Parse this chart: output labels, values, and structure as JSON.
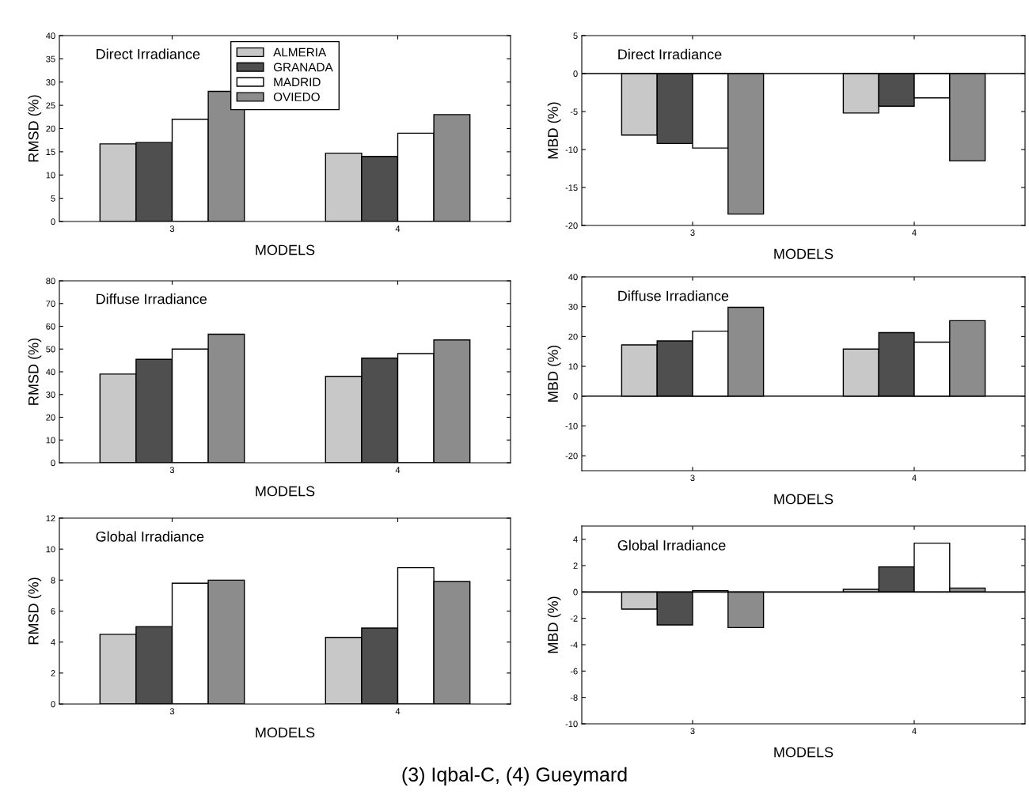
{
  "chart_data": [
    {
      "type": "bar",
      "title": "Direct Irradiance",
      "xlabel": "MODELS",
      "ylabel": "RMSD (%)",
      "categories": [
        "3",
        "4"
      ],
      "ylim": [
        0,
        40
      ],
      "yticks": [
        0,
        5,
        10,
        15,
        20,
        25,
        30,
        35,
        40
      ],
      "legend": "top",
      "grid": false,
      "series": [
        {
          "name": "ALMERIA",
          "color": "#c8c8c8",
          "values": [
            16.7,
            14.7
          ]
        },
        {
          "name": "GRANADA",
          "color": "#4f4f4f",
          "values": [
            17,
            14
          ]
        },
        {
          "name": "MADRID",
          "color": "#ffffff",
          "values": [
            22,
            19
          ]
        },
        {
          "name": "OVIEDO",
          "color": "#8c8c8c",
          "values": [
            28,
            23
          ]
        }
      ]
    },
    {
      "type": "bar",
      "title": "Direct Irradiance",
      "xlabel": "MODELS",
      "ylabel": "MBD (%)",
      "categories": [
        "3",
        "4"
      ],
      "ylim": [
        -20,
        5
      ],
      "yticks": [
        -20,
        -15,
        -10,
        -5,
        0,
        5
      ],
      "grid": false,
      "ref_lines": [
        {
          "axis": "y",
          "value": 0,
          "color": "#000000"
        }
      ],
      "series": [
        {
          "color": "#c8c8c8",
          "values": [
            -8.1,
            -5.2
          ]
        },
        {
          "color": "#4f4f4f",
          "values": [
            -9.2,
            -4.3
          ]
        },
        {
          "color": "#ffffff",
          "values": [
            -9.8,
            -3.2
          ]
        },
        {
          "color": "#8c8c8c",
          "values": [
            -18.5,
            -11.5
          ]
        }
      ]
    },
    {
      "type": "bar",
      "title": "Diffuse Irradiance",
      "xlabel": "MODELS",
      "ylabel": "RMSD (%)",
      "categories": [
        "3",
        "4"
      ],
      "ylim": [
        0,
        80
      ],
      "yticks": [
        0,
        10,
        20,
        30,
        40,
        50,
        60,
        70,
        80
      ],
      "grid": false,
      "series": [
        {
          "color": "#c8c8c8",
          "values": [
            39,
            38
          ]
        },
        {
          "color": "#4f4f4f",
          "values": [
            45.5,
            46
          ]
        },
        {
          "color": "#ffffff",
          "values": [
            50,
            48
          ]
        },
        {
          "color": "#8c8c8c",
          "values": [
            56.5,
            54
          ]
        }
      ]
    },
    {
      "type": "bar",
      "title": "Diffuse Irradiance",
      "xlabel": "MODELS",
      "ylabel": "MBD (%)",
      "categories": [
        "3",
        "4"
      ],
      "ylim": [
        -25,
        40
      ],
      "yticks": [
        -20,
        -10,
        0,
        10,
        20,
        30,
        40
      ],
      "grid": false,
      "ref_lines": [
        {
          "axis": "y",
          "value": 0,
          "color": "#000000"
        }
      ],
      "series": [
        {
          "color": "#c8c8c8",
          "values": [
            17.2,
            15.8
          ]
        },
        {
          "color": "#4f4f4f",
          "values": [
            18.5,
            21.3
          ]
        },
        {
          "color": "#ffffff",
          "values": [
            21.8,
            18.1
          ]
        },
        {
          "color": "#8c8c8c",
          "values": [
            29.8,
            25.3
          ]
        }
      ]
    },
    {
      "type": "bar",
      "title": "Global Irradiance",
      "xlabel": "MODELS",
      "ylabel": "RMSD (%)",
      "categories": [
        "3",
        "4"
      ],
      "ylim": [
        0,
        12
      ],
      "yticks": [
        0,
        2,
        4,
        6,
        8,
        10,
        12
      ],
      "grid": false,
      "series": [
        {
          "color": "#c8c8c8",
          "values": [
            4.5,
            4.3
          ]
        },
        {
          "color": "#4f4f4f",
          "values": [
            5.0,
            4.9
          ]
        },
        {
          "color": "#ffffff",
          "values": [
            7.8,
            8.8
          ]
        },
        {
          "color": "#8c8c8c",
          "values": [
            8.0,
            7.9
          ]
        }
      ]
    },
    {
      "type": "bar",
      "title": "Global Irradiance",
      "xlabel": "MODELS",
      "ylabel": "MBD (%)",
      "categories": [
        "3",
        "4"
      ],
      "ylim": [
        -10,
        5
      ],
      "yticks": [
        -10,
        -8,
        -6,
        -4,
        -2,
        0,
        2,
        4
      ],
      "grid": false,
      "ref_lines": [
        {
          "axis": "y",
          "value": 0,
          "color": "#000000"
        }
      ],
      "annotations": [
        "(3) Iqbal-C, (4) Gueymard"
      ],
      "series": [
        {
          "color": "#c8c8c8",
          "values": [
            -1.3,
            0.2
          ]
        },
        {
          "color": "#4f4f4f",
          "values": [
            -2.5,
            1.9
          ]
        },
        {
          "color": "#ffffff",
          "values": [
            0.1,
            3.7
          ]
        },
        {
          "color": "#8c8c8c",
          "values": [
            -2.7,
            0.3
          ]
        }
      ]
    }
  ]
}
